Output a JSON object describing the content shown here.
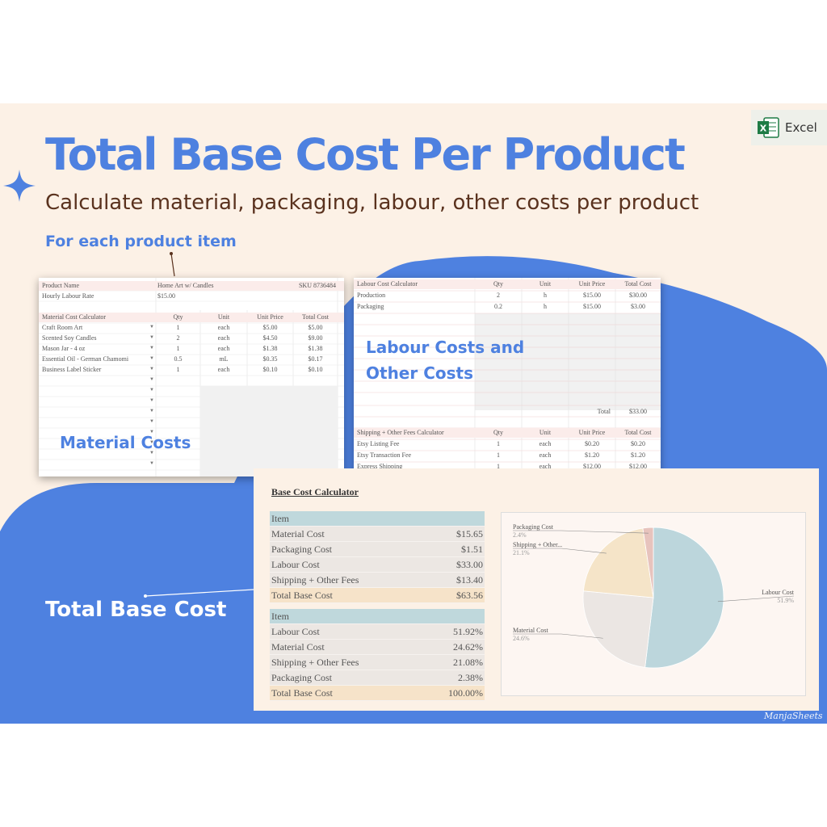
{
  "header": {
    "title": "Total Base Cost Per Product",
    "subtitle": "Calculate material, packaging, labour, other costs per product",
    "for_each": "For each product item",
    "excel_badge": "Excel"
  },
  "colors": {
    "blue": "#4e81e0",
    "cream": "#fcf1e6",
    "brown": "#5a321e"
  },
  "callouts": {
    "material": "Material Costs",
    "labour_line1": "Labour Costs and",
    "labour_line2": "Other Costs",
    "total": "Total Base Cost"
  },
  "product_sheet": {
    "product_name_label": "Product Name",
    "product_name_value": "Home Art w/ Candles",
    "sku": "SKU 8736484",
    "labour_rate_label": "Hourly Labour Rate",
    "labour_rate_value": "$15.00",
    "columns": [
      "Material Cost Calculator",
      "Qty",
      "Unit",
      "Unit Price",
      "Total Cost"
    ],
    "rows": [
      [
        "Craft Room Art",
        "1",
        "each",
        "$5.00",
        "$5.00"
      ],
      [
        "Scented Soy Candles",
        "2",
        "each",
        "$4.50",
        "$9.00"
      ],
      [
        "Mason Jar - 4 oz",
        "1",
        "each",
        "$1.38",
        "$1.38"
      ],
      [
        "Essential Oil - German Chamomi",
        "0.5",
        "mL",
        "$0.35",
        "$0.17"
      ],
      [
        "Business Label Sticker",
        "1",
        "each",
        "$0.10",
        "$0.10"
      ]
    ]
  },
  "labour_sheet": {
    "columns": [
      "Labour Cost Calculator",
      "Qty",
      "Unit",
      "Unit Price",
      "Total Cost"
    ],
    "rows": [
      [
        "Production",
        "2",
        "h",
        "$15.00",
        "$30.00"
      ],
      [
        "Packaging",
        "0.2",
        "h",
        "$15.00",
        "$3.00"
      ]
    ],
    "total_label": "Total",
    "total_value": "$33.00",
    "fees_columns": [
      "Shipping + Other Fees Calculator",
      "Qty",
      "Unit",
      "Unit Price",
      "Total Cost"
    ],
    "fees_rows": [
      [
        "Etsy Listing Fee",
        "1",
        "each",
        "$0.20",
        "$0.20"
      ],
      [
        "Etsy Transaction Fee",
        "1",
        "each",
        "$1.20",
        "$1.20"
      ],
      [
        "Express Shipping",
        "1",
        "each",
        "$12.00",
        "$12.00"
      ]
    ]
  },
  "base_cost": {
    "title": "Base Cost Calculator",
    "table1_header": "Item",
    "table1": [
      [
        "Material Cost",
        "$15.65"
      ],
      [
        "Packaging Cost",
        "$1.51"
      ],
      [
        "Labour Cost",
        "$33.00"
      ],
      [
        "Shipping + Other Fees",
        "$13.40"
      ]
    ],
    "table1_total": [
      "Total Base Cost",
      "$63.56"
    ],
    "table2_header": "Item",
    "table2": [
      [
        "Labour Cost",
        "51.92%"
      ],
      [
        "Material Cost",
        "24.62%"
      ],
      [
        "Shipping + Other Fees",
        "21.08%"
      ],
      [
        "Packaging Cost",
        "2.38%"
      ]
    ],
    "table2_total": [
      "Total Base Cost",
      "100.00%"
    ]
  },
  "chart_data": {
    "type": "pie",
    "slices": [
      {
        "label": "Labour Cost",
        "value": 51.9,
        "pct_label": "51.9%",
        "color": "#bcd6dc"
      },
      {
        "label": "Material Cost",
        "value": 24.6,
        "pct_label": "24.6%",
        "color": "#ebe6e3"
      },
      {
        "label": "Shipping + Other...",
        "value": 21.1,
        "pct_label": "21.1%",
        "color": "#f5e4c8"
      },
      {
        "label": "Packaging Cost",
        "value": 2.4,
        "pct_label": "2.4%",
        "color": "#e7c3bd"
      }
    ]
  },
  "watermark": "ManjaSheets"
}
